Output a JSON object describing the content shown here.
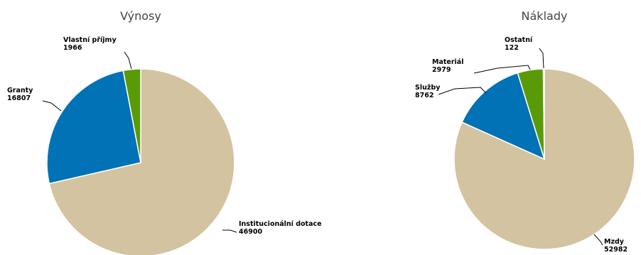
{
  "chart_data": [
    {
      "type": "pie",
      "title": "Výnosy",
      "slices": [
        {
          "label": "Institucionální dotace",
          "value": 46900,
          "color": "#D4C3A0"
        },
        {
          "label": "Granty",
          "value": 16807,
          "color": "#0072B5"
        },
        {
          "label": "Vlastní příjmy",
          "value": 1966,
          "color": "#5A9A08"
        }
      ]
    },
    {
      "type": "pie",
      "title": "Náklady",
      "slices": [
        {
          "label": "Mzdy",
          "value": 52982,
          "color": "#D4C3A0"
        },
        {
          "label": "Služby",
          "value": 8762,
          "color": "#0072B5"
        },
        {
          "label": "Materiál",
          "value": 2979,
          "color": "#5A9A08"
        },
        {
          "label": "Ostatní",
          "value": 122,
          "color": "#5A9A08"
        }
      ]
    }
  ]
}
